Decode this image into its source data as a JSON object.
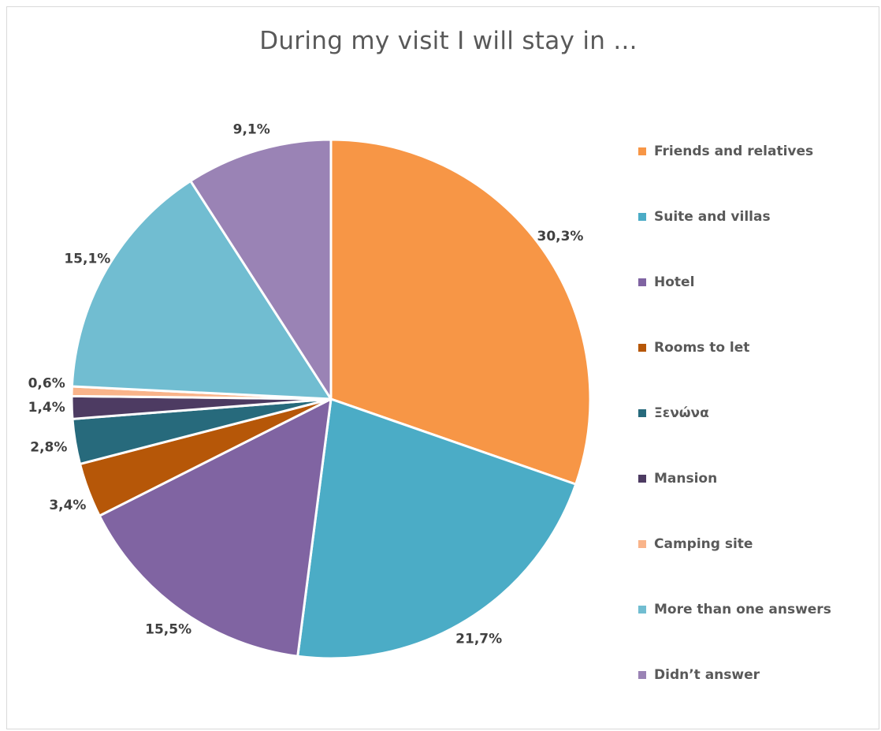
{
  "chart_data": {
    "type": "pie",
    "title": "During my visit I will stay in ...",
    "slices": [
      {
        "label": "Friends and relatives",
        "value": 30.3,
        "value_label": "30,3%",
        "color": "#F79646"
      },
      {
        "label": "Suite and villas",
        "value": 21.7,
        "value_label": "21,7%",
        "color": "#4BACC6"
      },
      {
        "label": "Hotel",
        "value": 15.5,
        "value_label": "15,5%",
        "color": "#8064A2"
      },
      {
        "label": "Rooms to let",
        "value": 3.4,
        "value_label": "3,4%",
        "color": "#B65708"
      },
      {
        "label": "Ξενώνα",
        "value": 2.8,
        "value_label": "2,8%",
        "color": "#276A7C"
      },
      {
        "label": "Mansion",
        "value": 1.4,
        "value_label": "1,4%",
        "color": "#4D3B62"
      },
      {
        "label": "Camping site",
        "value": 0.6,
        "value_label": "0,6%",
        "color": "#F9B48A"
      },
      {
        "label": "More than one answers",
        "value": 15.1,
        "value_label": "15,1%",
        "color": "#71BDD1"
      },
      {
        "label": "Didn’t answer",
        "value": 9.1,
        "value_label": "9,1%",
        "color": "#9A83B5"
      }
    ],
    "legend_position": "right",
    "start_angle_deg": 0,
    "direction": "clockwise"
  }
}
